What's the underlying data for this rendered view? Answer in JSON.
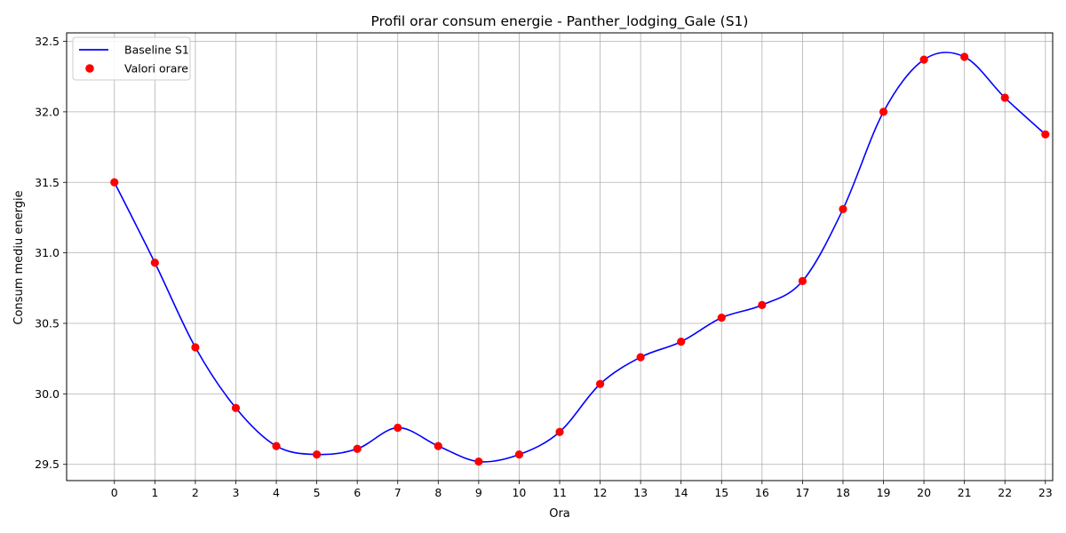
{
  "chart_data": {
    "type": "line",
    "title": "Profil orar consum energie - Panther_lodging_Gale (S1)",
    "xlabel": "Ora",
    "ylabel": "Consum mediu energie",
    "x": [
      0,
      1,
      2,
      3,
      4,
      5,
      6,
      7,
      8,
      9,
      10,
      11,
      12,
      13,
      14,
      15,
      16,
      17,
      18,
      19,
      20,
      21,
      22,
      23
    ],
    "x_tick_labels": [
      "0",
      "1",
      "2",
      "3",
      "4",
      "5",
      "6",
      "7",
      "8",
      "9",
      "10",
      "11",
      "12",
      "13",
      "14",
      "15",
      "16",
      "17",
      "18",
      "19",
      "20",
      "21",
      "22",
      "23"
    ],
    "y_ticks": [
      29.5,
      30.0,
      30.5,
      31.0,
      31.5,
      32.0,
      32.5
    ],
    "y_tick_labels": [
      "29.5",
      "30.0",
      "30.5",
      "31.0",
      "31.5",
      "32.0",
      "32.5"
    ],
    "xlim": [
      -1.18,
      23.18
    ],
    "ylim": [
      29.385,
      32.56
    ],
    "grid": true,
    "legend_position": "top-left",
    "series": [
      {
        "name": "Baseline S1",
        "kind": "line",
        "color": "#0000ff",
        "values": [
          31.5,
          30.93,
          30.33,
          29.9,
          29.63,
          29.57,
          29.61,
          29.76,
          29.63,
          29.52,
          29.57,
          29.73,
          30.07,
          30.26,
          30.37,
          30.54,
          30.63,
          30.8,
          31.31,
          32.0,
          32.37,
          32.39,
          32.1,
          31.84
        ]
      },
      {
        "name": "Valori orare",
        "kind": "scatter",
        "color": "#ff0000",
        "values": [
          31.5,
          30.93,
          30.33,
          29.9,
          29.63,
          29.57,
          29.61,
          29.76,
          29.63,
          29.52,
          29.57,
          29.73,
          30.07,
          30.26,
          30.37,
          30.54,
          30.63,
          30.8,
          31.31,
          32.0,
          32.37,
          32.39,
          32.1,
          31.84
        ]
      }
    ]
  }
}
